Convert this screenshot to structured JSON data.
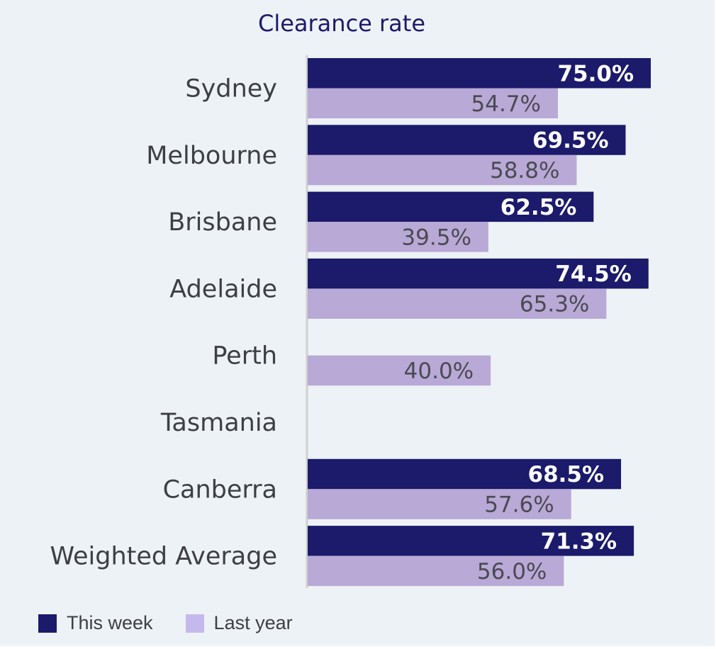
{
  "chart_data": {
    "type": "bar",
    "orientation": "horizontal",
    "title": "Clearance rate",
    "categories": [
      "Sydney",
      "Melbourne",
      "Brisbane",
      "Adelaide",
      "Perth",
      "Tasmania",
      "Canberra",
      "Weighted Average"
    ],
    "series": [
      {
        "name": "This week",
        "color": "#1b1a6b",
        "values": [
          75.0,
          69.5,
          62.5,
          74.5,
          null,
          null,
          68.5,
          71.3
        ],
        "labels": [
          "75.0%",
          "69.5%",
          "62.5%",
          "74.5%",
          "",
          "",
          "68.5%",
          "71.3%"
        ]
      },
      {
        "name": "Last year",
        "color": "#b9a9d6",
        "values": [
          54.7,
          58.8,
          39.5,
          65.3,
          40.0,
          null,
          57.6,
          56.0
        ],
        "labels": [
          "54.7%",
          "58.8%",
          "39.5%",
          "65.3%",
          "40.0%",
          "",
          "57.6%",
          "56.0%"
        ]
      }
    ],
    "xlim": [
      0,
      80
    ],
    "grid": false,
    "legend_position": "bottom-left",
    "legend_swatch_colors": [
      "#1b1a6b",
      "#c5b9ec"
    ],
    "axis_color": "#d0d0d0",
    "panel_color": "#edf2f6"
  }
}
